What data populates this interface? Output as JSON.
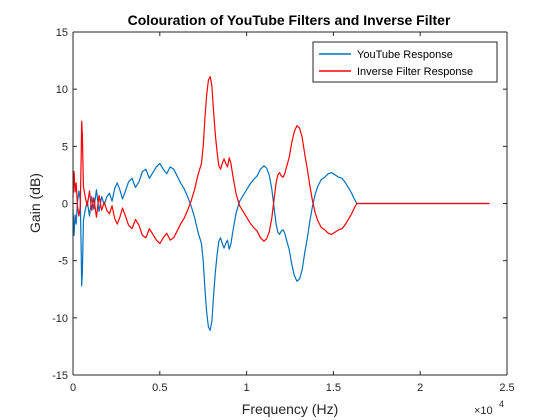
{
  "chart_data": {
    "type": "line",
    "title": "Colouration of YouTube Filters and Inverse Filter",
    "xlabel": "Frequency (Hz)",
    "ylabel": "Gain (dB)",
    "x_exponent_label": "×10",
    "x_exponent_power": "4",
    "xlim": [
      0,
      25000
    ],
    "ylim": [
      -15,
      15
    ],
    "x_ticks": [
      0,
      5000,
      10000,
      15000,
      20000,
      25000
    ],
    "x_tick_labels": [
      "0",
      "0.5",
      "1",
      "1.5",
      "2",
      "2.5"
    ],
    "y_ticks": [
      -15,
      -10,
      -5,
      0,
      5,
      10,
      15
    ],
    "y_tick_labels": [
      "-15",
      "-10",
      "-5",
      "0",
      "5",
      "10",
      "15"
    ],
    "grid": false,
    "legend_position": "top-right",
    "series": [
      {
        "name": "YouTube Response",
        "color": "#0072BD",
        "points": [
          [
            0,
            -0.5
          ],
          [
            60,
            -2.8
          ],
          [
            120,
            -1.0
          ],
          [
            180,
            -1.8
          ],
          [
            260,
            0.2
          ],
          [
            340,
            1.1
          ],
          [
            420,
            0.3
          ],
          [
            470,
            -4.0
          ],
          [
            500,
            -7.2
          ],
          [
            540,
            -6.0
          ],
          [
            600,
            -1.5
          ],
          [
            700,
            -0.6
          ],
          [
            820,
            0.2
          ],
          [
            950,
            -1.1
          ],
          [
            1080,
            0.6
          ],
          [
            1200,
            -0.5
          ],
          [
            1350,
            1.2
          ],
          [
            1500,
            -0.7
          ],
          [
            1650,
            0.6
          ],
          [
            1800,
            -0.1
          ],
          [
            1950,
            0.6
          ],
          [
            2100,
            0.9
          ],
          [
            2250,
            0.2
          ],
          [
            2400,
            1.3
          ],
          [
            2550,
            1.8
          ],
          [
            2700,
            1.2
          ],
          [
            2850,
            0.4
          ],
          [
            3000,
            1.0
          ],
          [
            3200,
            1.9
          ],
          [
            3400,
            2.2
          ],
          [
            3600,
            1.4
          ],
          [
            3800,
            1.9
          ],
          [
            4000,
            2.8
          ],
          [
            4200,
            3.0
          ],
          [
            4400,
            2.2
          ],
          [
            4600,
            2.7
          ],
          [
            4800,
            3.2
          ],
          [
            5000,
            3.5
          ],
          [
            5200,
            3.0
          ],
          [
            5400,
            2.6
          ],
          [
            5600,
            3.2
          ],
          [
            5800,
            3.0
          ],
          [
            6000,
            2.4
          ],
          [
            6200,
            1.8
          ],
          [
            6400,
            1.3
          ],
          [
            6600,
            0.6
          ],
          [
            6800,
            -0.2
          ],
          [
            7000,
            -1.2
          ],
          [
            7200,
            -2.5
          ],
          [
            7400,
            -3.5
          ],
          [
            7500,
            -5.0
          ],
          [
            7600,
            -7.5
          ],
          [
            7700,
            -9.5
          ],
          [
            7800,
            -10.8
          ],
          [
            7900,
            -11.1
          ],
          [
            8000,
            -10.3
          ],
          [
            8100,
            -8.0
          ],
          [
            8200,
            -6.0
          ],
          [
            8300,
            -4.5
          ],
          [
            8400,
            -3.3
          ],
          [
            8500,
            -3.0
          ],
          [
            8600,
            -3.5
          ],
          [
            8700,
            -3.9
          ],
          [
            8800,
            -3.5
          ],
          [
            8900,
            -3.2
          ],
          [
            9000,
            -4.0
          ],
          [
            9100,
            -3.5
          ],
          [
            9200,
            -2.5
          ],
          [
            9400,
            -0.8
          ],
          [
            9600,
            0.2
          ],
          [
            9800,
            0.7
          ],
          [
            10000,
            1.2
          ],
          [
            10200,
            1.7
          ],
          [
            10400,
            2.1
          ],
          [
            10600,
            2.4
          ],
          [
            10800,
            3.0
          ],
          [
            11000,
            3.3
          ],
          [
            11150,
            3.1
          ],
          [
            11300,
            2.5
          ],
          [
            11450,
            1.3
          ],
          [
            11600,
            -0.6
          ],
          [
            11700,
            -1.8
          ],
          [
            11800,
            -2.5
          ],
          [
            11900,
            -2.7
          ],
          [
            12000,
            -2.4
          ],
          [
            12100,
            -2.3
          ],
          [
            12200,
            -2.6
          ],
          [
            12300,
            -3.2
          ],
          [
            12450,
            -4.0
          ],
          [
            12600,
            -5.3
          ],
          [
            12750,
            -6.3
          ],
          [
            12900,
            -6.8
          ],
          [
            13050,
            -6.6
          ],
          [
            13200,
            -5.8
          ],
          [
            13350,
            -4.3
          ],
          [
            13500,
            -3.0
          ],
          [
            13650,
            -1.5
          ],
          [
            13800,
            -0.2
          ],
          [
            13950,
            0.8
          ],
          [
            14100,
            1.5
          ],
          [
            14300,
            2.1
          ],
          [
            14500,
            2.3
          ],
          [
            14700,
            2.6
          ],
          [
            14900,
            2.7
          ],
          [
            15100,
            2.5
          ],
          [
            15300,
            2.3
          ],
          [
            15500,
            2.2
          ],
          [
            15700,
            1.8
          ],
          [
            15900,
            1.3
          ],
          [
            16050,
            0.9
          ],
          [
            16200,
            0.4
          ],
          [
            16350,
            0
          ],
          [
            24000,
            0
          ]
        ]
      },
      {
        "name": "Inverse Filter Response",
        "color": "#FF0000",
        "points": [
          [
            0,
            0.5
          ],
          [
            60,
            2.8
          ],
          [
            120,
            1.0
          ],
          [
            180,
            1.8
          ],
          [
            260,
            -0.2
          ],
          [
            340,
            -1.1
          ],
          [
            420,
            -0.3
          ],
          [
            470,
            4.0
          ],
          [
            500,
            7.2
          ],
          [
            540,
            6.0
          ],
          [
            600,
            1.5
          ],
          [
            700,
            0.6
          ],
          [
            820,
            -0.2
          ],
          [
            950,
            1.1
          ],
          [
            1080,
            -0.6
          ],
          [
            1200,
            0.5
          ],
          [
            1350,
            -1.2
          ],
          [
            1500,
            0.7
          ],
          [
            1650,
            -0.6
          ],
          [
            1800,
            0.1
          ],
          [
            1950,
            -0.6
          ],
          [
            2100,
            -0.9
          ],
          [
            2250,
            -0.2
          ],
          [
            2400,
            -1.3
          ],
          [
            2550,
            -1.8
          ],
          [
            2700,
            -1.2
          ],
          [
            2850,
            -0.4
          ],
          [
            3000,
            -1.0
          ],
          [
            3200,
            -1.9
          ],
          [
            3400,
            -2.2
          ],
          [
            3600,
            -1.4
          ],
          [
            3800,
            -1.9
          ],
          [
            4000,
            -2.8
          ],
          [
            4200,
            -3.0
          ],
          [
            4400,
            -2.2
          ],
          [
            4600,
            -2.7
          ],
          [
            4800,
            -3.2
          ],
          [
            5000,
            -3.5
          ],
          [
            5200,
            -3.0
          ],
          [
            5400,
            -2.6
          ],
          [
            5600,
            -3.2
          ],
          [
            5800,
            -3.0
          ],
          [
            6000,
            -2.4
          ],
          [
            6200,
            -1.8
          ],
          [
            6400,
            -1.3
          ],
          [
            6600,
            -0.6
          ],
          [
            6800,
            0.2
          ],
          [
            7000,
            1.2
          ],
          [
            7200,
            2.5
          ],
          [
            7400,
            3.5
          ],
          [
            7500,
            5.0
          ],
          [
            7600,
            7.5
          ],
          [
            7700,
            9.5
          ],
          [
            7800,
            10.8
          ],
          [
            7900,
            11.1
          ],
          [
            8000,
            10.3
          ],
          [
            8100,
            8.0
          ],
          [
            8200,
            6.0
          ],
          [
            8300,
            4.5
          ],
          [
            8400,
            3.3
          ],
          [
            8500,
            3.0
          ],
          [
            8600,
            3.5
          ],
          [
            8700,
            3.9
          ],
          [
            8800,
            3.5
          ],
          [
            8900,
            3.2
          ],
          [
            9000,
            4.0
          ],
          [
            9100,
            3.5
          ],
          [
            9200,
            2.5
          ],
          [
            9400,
            0.8
          ],
          [
            9600,
            -0.2
          ],
          [
            9800,
            -0.7
          ],
          [
            10000,
            -1.2
          ],
          [
            10200,
            -1.7
          ],
          [
            10400,
            -2.1
          ],
          [
            10600,
            -2.4
          ],
          [
            10800,
            -3.0
          ],
          [
            11000,
            -3.3
          ],
          [
            11150,
            -3.1
          ],
          [
            11300,
            -2.5
          ],
          [
            11450,
            -1.3
          ],
          [
            11600,
            0.6
          ],
          [
            11700,
            1.8
          ],
          [
            11800,
            2.5
          ],
          [
            11900,
            2.7
          ],
          [
            12000,
            2.4
          ],
          [
            12100,
            2.3
          ],
          [
            12200,
            2.6
          ],
          [
            12300,
            3.2
          ],
          [
            12450,
            4.0
          ],
          [
            12600,
            5.3
          ],
          [
            12750,
            6.3
          ],
          [
            12900,
            6.8
          ],
          [
            13050,
            6.6
          ],
          [
            13200,
            5.8
          ],
          [
            13350,
            4.3
          ],
          [
            13500,
            3.0
          ],
          [
            13650,
            1.5
          ],
          [
            13800,
            0.2
          ],
          [
            13950,
            -0.8
          ],
          [
            14100,
            -1.5
          ],
          [
            14300,
            -2.1
          ],
          [
            14500,
            -2.3
          ],
          [
            14700,
            -2.6
          ],
          [
            14900,
            -2.7
          ],
          [
            15100,
            -2.5
          ],
          [
            15300,
            -2.3
          ],
          [
            15500,
            -2.2
          ],
          [
            15700,
            -1.8
          ],
          [
            15900,
            -1.3
          ],
          [
            16050,
            -0.9
          ],
          [
            16200,
            -0.4
          ],
          [
            16350,
            0
          ],
          [
            24000,
            0
          ]
        ]
      }
    ]
  }
}
